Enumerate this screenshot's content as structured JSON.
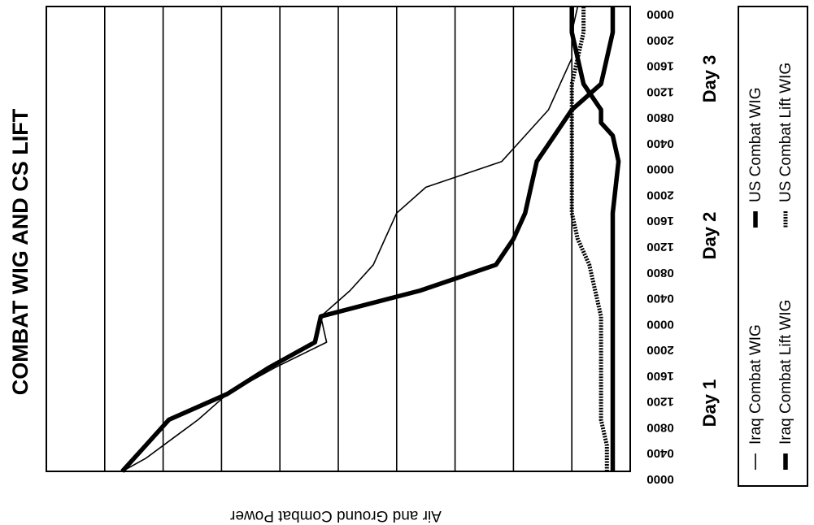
{
  "chart_data": {
    "type": "line",
    "title": "COMBAT WIG AND CS LIFT",
    "ylabel": "Air and Ground Combat Power",
    "xlabel": "",
    "day_labels": [
      "Day 1",
      "Day 2",
      "Day 3"
    ],
    "x_ticks": [
      "0000",
      "0400",
      "0800",
      "1200",
      "1600",
      "2000",
      "0000",
      "0400",
      "0800",
      "1200",
      "1600",
      "2000",
      "0000",
      "0400",
      "0800",
      "1200",
      "1600",
      "2000",
      "0000"
    ],
    "xlim": [
      0,
      72
    ],
    "ylim": [
      0,
      100
    ],
    "grid": true,
    "legend_position": "right",
    "series": [
      {
        "name": "Iraq Combat WIG",
        "style": "thin",
        "points": [
          [
            0,
            13
          ],
          [
            2,
            17
          ],
          [
            4,
            20
          ],
          [
            6,
            23
          ],
          [
            8,
            26
          ],
          [
            12,
            31
          ],
          [
            16,
            39
          ],
          [
            20,
            48
          ],
          [
            24,
            47
          ],
          [
            28,
            52
          ],
          [
            32,
            56
          ],
          [
            36,
            58
          ],
          [
            40,
            60
          ],
          [
            44,
            65
          ],
          [
            48,
            78
          ],
          [
            52,
            82
          ],
          [
            56,
            86
          ],
          [
            60,
            88
          ],
          [
            64,
            90
          ],
          [
            68,
            90
          ],
          [
            72,
            91
          ]
        ]
      },
      {
        "name": "US Combat WIG",
        "style": "thick",
        "points": [
          [
            0,
            97
          ],
          [
            8,
            97
          ],
          [
            16,
            97
          ],
          [
            24,
            97
          ],
          [
            32,
            97
          ],
          [
            40,
            97
          ],
          [
            48,
            98
          ],
          [
            52,
            97
          ],
          [
            54,
            95
          ],
          [
            56,
            95
          ],
          [
            60,
            92
          ],
          [
            64,
            91
          ],
          [
            68,
            90
          ],
          [
            72,
            90
          ]
        ]
      },
      {
        "name": "Iraq Combat Lift WIG",
        "style": "thick",
        "points": [
          [
            0,
            13
          ],
          [
            4,
            17
          ],
          [
            8,
            21
          ],
          [
            12,
            31
          ],
          [
            16,
            38
          ],
          [
            20,
            46
          ],
          [
            24,
            47
          ],
          [
            28,
            64
          ],
          [
            32,
            77
          ],
          [
            36,
            80
          ],
          [
            40,
            82
          ],
          [
            44,
            83
          ],
          [
            48,
            84
          ],
          [
            52,
            87
          ],
          [
            56,
            90
          ],
          [
            60,
            95
          ],
          [
            64,
            96
          ],
          [
            68,
            97
          ],
          [
            72,
            97
          ]
        ]
      },
      {
        "name": "US Combat Lift WIG",
        "style": "dotted",
        "points": [
          [
            0,
            96
          ],
          [
            4,
            96
          ],
          [
            8,
            95
          ],
          [
            12,
            95
          ],
          [
            16,
            95
          ],
          [
            20,
            95
          ],
          [
            24,
            95
          ],
          [
            28,
            94
          ],
          [
            32,
            93
          ],
          [
            36,
            91
          ],
          [
            40,
            90
          ],
          [
            44,
            90
          ],
          [
            48,
            90
          ],
          [
            52,
            90
          ],
          [
            56,
            90
          ],
          [
            60,
            90
          ],
          [
            64,
            91
          ],
          [
            68,
            92
          ],
          [
            72,
            92
          ]
        ]
      }
    ]
  }
}
